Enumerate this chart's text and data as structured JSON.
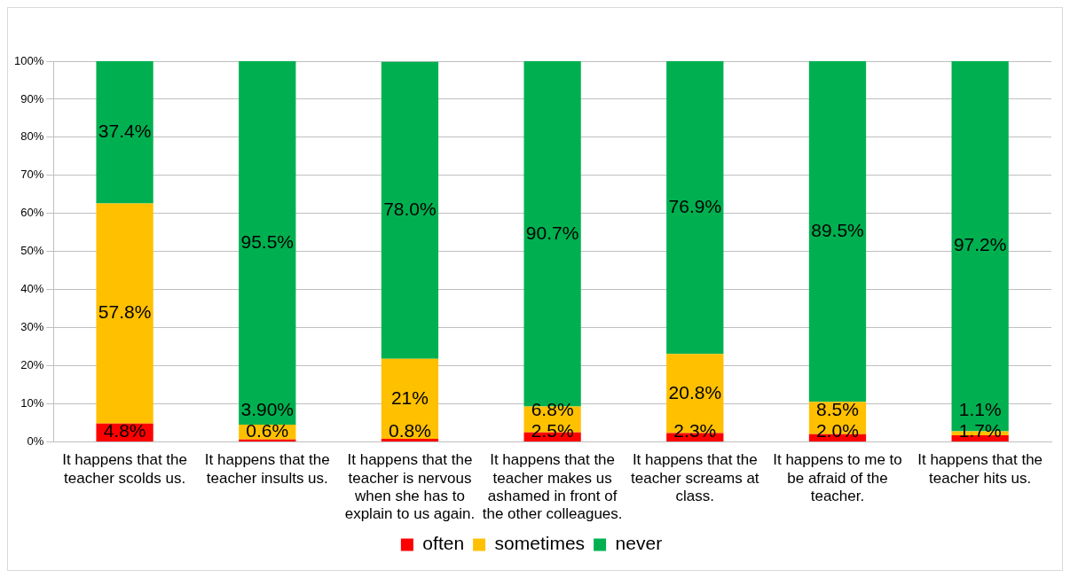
{
  "chart_data": {
    "type": "bar",
    "stacked": true,
    "categories": [
      "It happens that the teacher scolds us.",
      "It happens that the teacher insults us.",
      "It happens that the teacher is nervous when she has to explain to us again.",
      "It happens that the teacher makes us ashamed in front of the other colleagues.",
      "It happens that the teacher screams at class.",
      "It happens to me to be afraid of the teacher.",
      "It happens that the teacher hits us."
    ],
    "series": [
      {
        "name": "often",
        "color": "#ff0000",
        "values": [
          4.8,
          0.6,
          0.8,
          2.5,
          2.3,
          2.0,
          1.7
        ],
        "value_labels": [
          "4.8%",
          "0.6%",
          "0.8%",
          "2.5%",
          "2.3%",
          "2.0%",
          "1.7%"
        ]
      },
      {
        "name": "sometimes",
        "color": "#ffc000",
        "values": [
          57.8,
          3.9,
          21,
          6.8,
          20.8,
          8.5,
          1.1
        ],
        "value_labels": [
          "57.8%",
          "3.90%",
          "21%",
          "6.8%",
          "20.8%",
          "8.5%",
          "1.1%"
        ]
      },
      {
        "name": "never",
        "color": "#00b050",
        "values": [
          37.4,
          95.5,
          78.0,
          90.7,
          76.9,
          89.5,
          97.2
        ],
        "value_labels": [
          "37.4%",
          "95.5%",
          "78.0%",
          "90.7%",
          "76.9%",
          "89.5%",
          "97.2%"
        ]
      }
    ],
    "ylim": [
      0,
      100
    ],
    "yticks": [
      {
        "value": 0,
        "label": "0%"
      },
      {
        "value": 10,
        "label": "10%"
      },
      {
        "value": 20,
        "label": "20%"
      },
      {
        "value": 30,
        "label": "30%"
      },
      {
        "value": 40,
        "label": "40%"
      },
      {
        "value": 50,
        "label": "50%"
      },
      {
        "value": 60,
        "label": "60%"
      },
      {
        "value": 70,
        "label": "70%"
      },
      {
        "value": 80,
        "label": "80%"
      },
      {
        "value": 90,
        "label": "90%"
      },
      {
        "value": 100,
        "label": "100%"
      }
    ],
    "grid": "y",
    "legend": "bottom"
  }
}
